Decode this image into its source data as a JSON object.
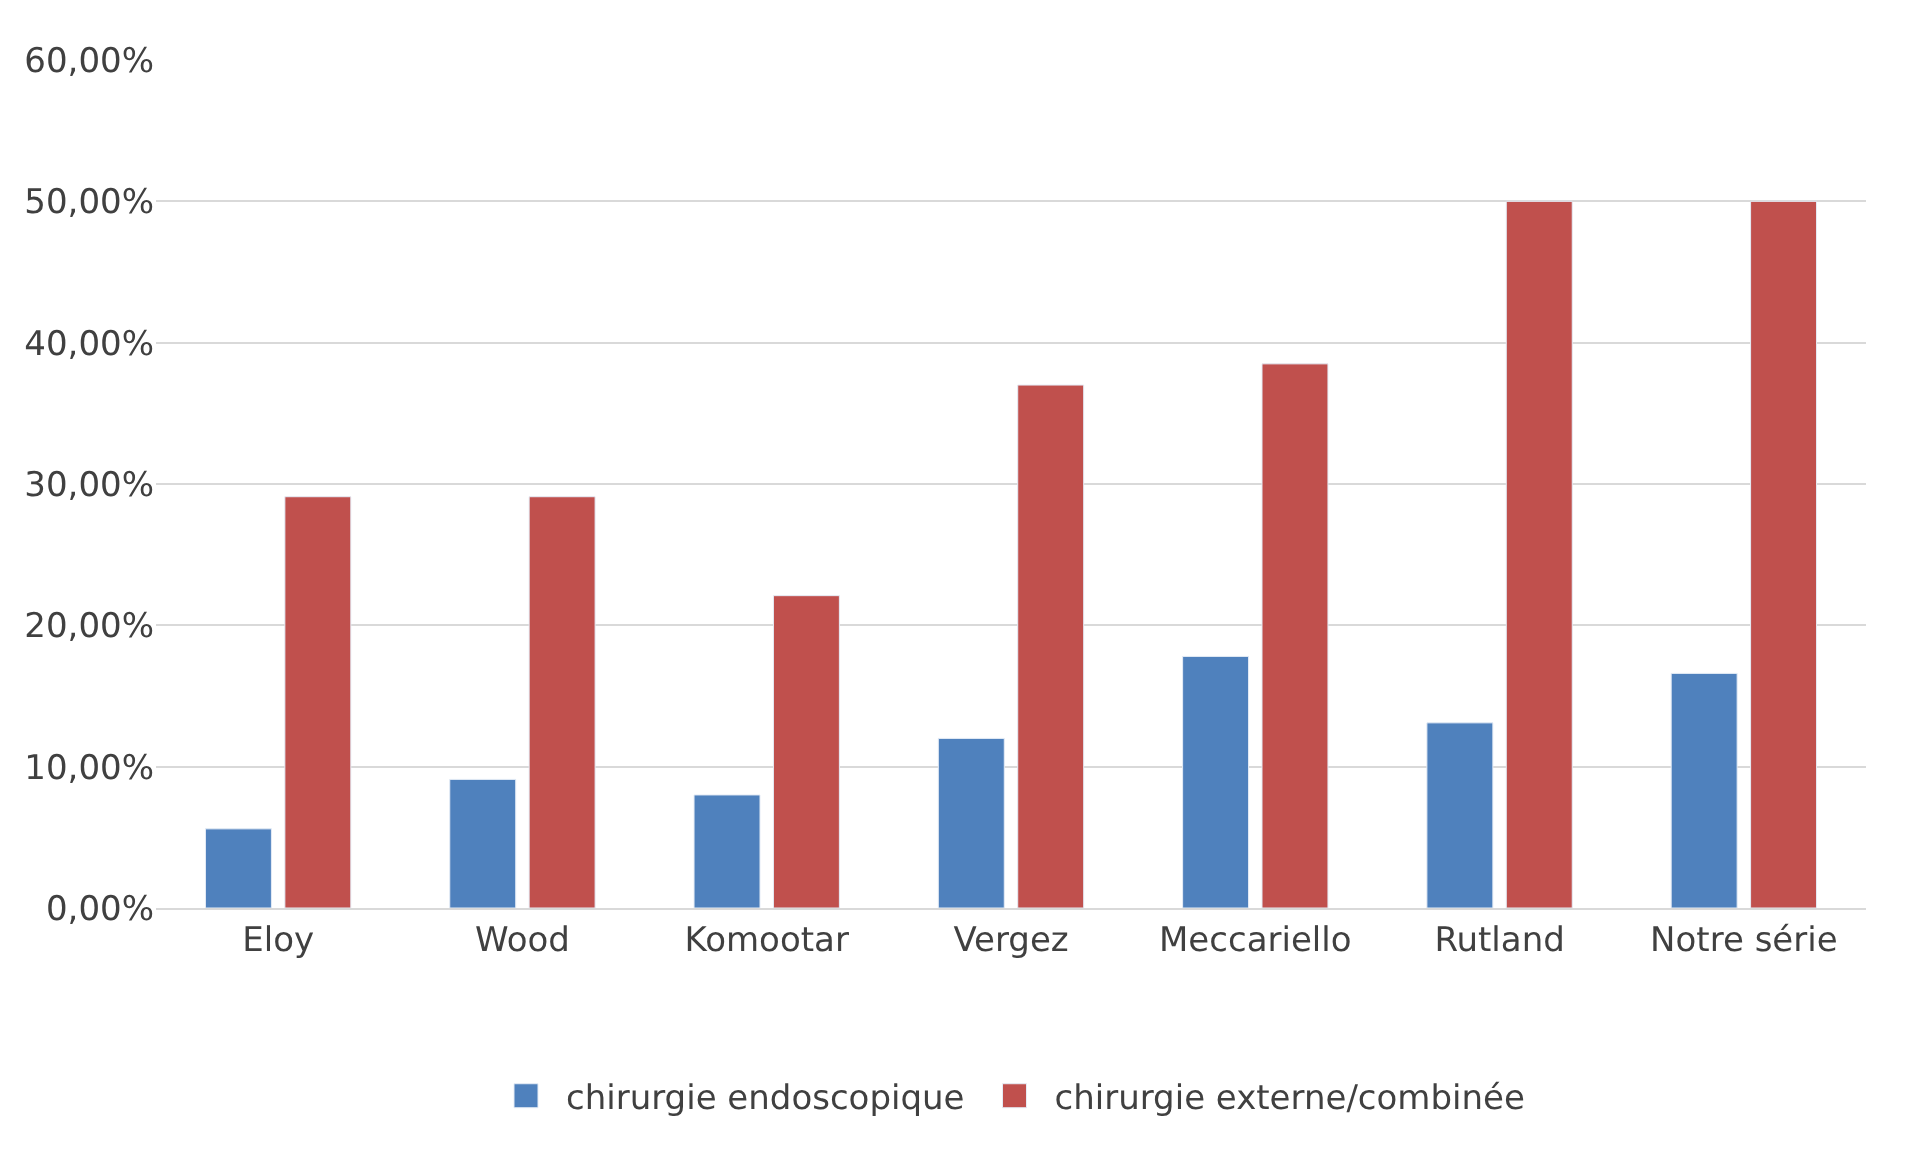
{
  "chart_data": {
    "type": "bar",
    "categories": [
      "Eloy",
      "Wood",
      "Komootar",
      "Vergez",
      "Meccariello",
      "Rutland",
      "Notre série"
    ],
    "series": [
      {
        "name": "chirurgie endoscopique",
        "color": "#4f81bd",
        "values": [
          5.6,
          9.1,
          8.0,
          12.0,
          17.8,
          13.1,
          16.6
        ]
      },
      {
        "name": "chirurgie externe/combinée",
        "color": "#c0504d",
        "values": [
          29.1,
          29.1,
          22.1,
          37.0,
          38.5,
          50,
          50
        ]
      }
    ],
    "ylim": [
      0,
      60
    ],
    "yticks": [
      {
        "value": 0,
        "label": "0,00%"
      },
      {
        "value": 10,
        "label": "10,00%"
      },
      {
        "value": 20,
        "label": "20,00%"
      },
      {
        "value": 30,
        "label": "30,00%"
      },
      {
        "value": 40,
        "label": "40,00%"
      },
      {
        "value": 50,
        "label": "50,00%"
      },
      {
        "value": 60,
        "label": "60,00%"
      }
    ],
    "grid": "y",
    "legend": "bottom"
  }
}
